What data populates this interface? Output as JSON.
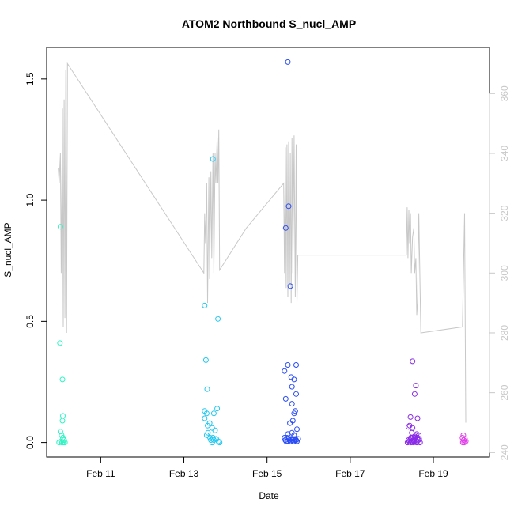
{
  "chart_data": {
    "type": "scatter",
    "title": "ATOM2 Northbound S_nucl_AMP",
    "xlabel": "Date",
    "ylabel": "S_nucl_AMP",
    "x_unit": "days (0 = Feb 10 00:00)",
    "xlim": [
      -0.3,
      10.35
    ],
    "ylim": [
      -0.06,
      1.63
    ],
    "y2lim": [
      238.5,
      375.4
    ],
    "x_ticks": [
      {
        "x": 1,
        "label": "Feb 11"
      },
      {
        "x": 3,
        "label": "Feb 13"
      },
      {
        "x": 5,
        "label": "Feb 15"
      },
      {
        "x": 7,
        "label": "Feb 17"
      },
      {
        "x": 9,
        "label": "Feb 19"
      }
    ],
    "y_ticks": [
      {
        "y": 0.0,
        "label": "0.0"
      },
      {
        "y": 0.5,
        "label": "0.5"
      },
      {
        "y": 1.0,
        "label": "1.0"
      },
      {
        "y": 1.5,
        "label": "1.5"
      }
    ],
    "y2_ticks": [
      {
        "y": 240,
        "label": "240"
      },
      {
        "y": 260,
        "label": "260"
      },
      {
        "y": 280,
        "label": "280"
      },
      {
        "y": 300,
        "label": "300"
      },
      {
        "y": 320,
        "label": "320"
      },
      {
        "y": 340,
        "label": "340"
      },
      {
        "y": 360,
        "label": "360"
      }
    ],
    "grid": false,
    "series": [
      {
        "color": "#2ff5c4",
        "points": [
          [
            0.03,
            0.89
          ],
          [
            0.02,
            0.41
          ],
          [
            0.08,
            0.26
          ],
          [
            0.09,
            0.11
          ],
          [
            0.08,
            0.09
          ],
          [
            0.03,
            0.045
          ],
          [
            0.06,
            0.03
          ],
          [
            0.09,
            0.02
          ],
          [
            0.12,
            0.01
          ],
          [
            0.05,
            0.005
          ],
          [
            0.07,
            0.0
          ],
          [
            0.1,
            0.0
          ],
          [
            0.14,
            0.0
          ],
          [
            0.0,
            0.0
          ]
        ]
      },
      {
        "color": "#22c8f0",
        "points": [
          [
            3.7,
            1.17
          ],
          [
            3.5,
            0.565
          ],
          [
            3.82,
            0.51
          ],
          [
            3.53,
            0.34
          ],
          [
            3.56,
            0.22
          ],
          [
            3.8,
            0.14
          ],
          [
            3.5,
            0.13
          ],
          [
            3.55,
            0.12
          ],
          [
            3.72,
            0.12
          ],
          [
            3.5,
            0.1
          ],
          [
            3.62,
            0.08
          ],
          [
            3.57,
            0.07
          ],
          [
            3.68,
            0.06
          ],
          [
            3.75,
            0.05
          ],
          [
            3.58,
            0.04
          ],
          [
            3.55,
            0.03
          ],
          [
            3.63,
            0.02
          ],
          [
            3.7,
            0.02
          ],
          [
            3.78,
            0.015
          ],
          [
            3.65,
            0.01
          ],
          [
            3.72,
            0.01
          ],
          [
            3.83,
            0.005
          ],
          [
            3.86,
            0.0
          ],
          [
            3.68,
            0.0
          ]
        ]
      },
      {
        "color": "#2a4cf5",
        "points": [
          [
            5.5,
            1.57
          ],
          [
            5.52,
            0.975
          ],
          [
            5.45,
            0.885
          ],
          [
            5.56,
            0.645
          ],
          [
            5.5,
            0.32
          ],
          [
            5.7,
            0.32
          ],
          [
            5.42,
            0.295
          ],
          [
            5.58,
            0.27
          ],
          [
            5.65,
            0.26
          ],
          [
            5.6,
            0.23
          ],
          [
            5.7,
            0.2
          ],
          [
            5.45,
            0.18
          ],
          [
            5.6,
            0.16
          ],
          [
            5.68,
            0.13
          ],
          [
            5.65,
            0.12
          ],
          [
            5.62,
            0.09
          ],
          [
            5.55,
            0.08
          ],
          [
            5.72,
            0.055
          ],
          [
            5.6,
            0.04
          ],
          [
            5.5,
            0.035
          ],
          [
            5.65,
            0.03
          ],
          [
            5.42,
            0.02
          ],
          [
            5.48,
            0.02
          ],
          [
            5.52,
            0.015
          ],
          [
            5.58,
            0.015
          ],
          [
            5.62,
            0.015
          ],
          [
            5.68,
            0.015
          ],
          [
            5.75,
            0.015
          ],
          [
            5.44,
            0.01
          ],
          [
            5.54,
            0.01
          ],
          [
            5.6,
            0.01
          ],
          [
            5.66,
            0.01
          ],
          [
            5.7,
            0.01
          ],
          [
            5.46,
            0.005
          ],
          [
            5.5,
            0.005
          ],
          [
            5.56,
            0.005
          ],
          [
            5.64,
            0.005
          ],
          [
            5.72,
            0.005
          ]
        ]
      },
      {
        "color": "#8a2be8",
        "points": [
          [
            8.5,
            0.335
          ],
          [
            8.58,
            0.235
          ],
          [
            8.55,
            0.2
          ],
          [
            8.45,
            0.105
          ],
          [
            8.62,
            0.1
          ],
          [
            8.43,
            0.07
          ],
          [
            8.4,
            0.065
          ],
          [
            8.5,
            0.06
          ],
          [
            8.48,
            0.04
          ],
          [
            8.6,
            0.035
          ],
          [
            8.65,
            0.03
          ],
          [
            8.55,
            0.025
          ],
          [
            8.46,
            0.02
          ],
          [
            8.5,
            0.02
          ],
          [
            8.56,
            0.02
          ],
          [
            8.62,
            0.02
          ],
          [
            8.66,
            0.015
          ],
          [
            8.4,
            0.01
          ],
          [
            8.44,
            0.01
          ],
          [
            8.52,
            0.01
          ],
          [
            8.58,
            0.01
          ],
          [
            8.64,
            0.01
          ],
          [
            8.42,
            0.005
          ],
          [
            8.48,
            0.005
          ],
          [
            8.54,
            0.005
          ],
          [
            8.6,
            0.005
          ],
          [
            8.38,
            0.0
          ],
          [
            8.46,
            0.0
          ],
          [
            8.52,
            0.0
          ],
          [
            8.6,
            0.0
          ],
          [
            8.68,
            0.0
          ]
        ]
      },
      {
        "color": "#e040e8",
        "points": [
          [
            9.72,
            0.03
          ],
          [
            9.7,
            0.02
          ],
          [
            9.76,
            0.015
          ],
          [
            9.73,
            0.01
          ],
          [
            9.78,
            0.005
          ],
          [
            9.74,
            0.0
          ],
          [
            9.71,
            0.0
          ]
        ]
      }
    ],
    "secondary_line": {
      "color": "#c8c8c8",
      "points": [
        [
          -0.02,
          335
        ],
        [
          0.0,
          330
        ],
        [
          0.03,
          340
        ],
        [
          0.05,
          300
        ],
        [
          0.08,
          355
        ],
        [
          0.1,
          282
        ],
        [
          0.12,
          358
        ],
        [
          0.14,
          285
        ],
        [
          0.16,
          368
        ],
        [
          0.18,
          280
        ],
        [
          0.2,
          370
        ],
        [
          3.48,
          300
        ],
        [
          3.5,
          320
        ],
        [
          3.52,
          310
        ],
        [
          3.55,
          330
        ],
        [
          3.57,
          290
        ],
        [
          3.6,
          332
        ],
        [
          3.62,
          298
        ],
        [
          3.65,
          334
        ],
        [
          3.67,
          305
        ],
        [
          3.7,
          340
        ],
        [
          3.72,
          300
        ],
        [
          3.75,
          340
        ],
        [
          3.77,
          330
        ],
        [
          3.8,
          345
        ],
        [
          3.82,
          330
        ],
        [
          3.84,
          348
        ],
        [
          3.86,
          301
        ],
        [
          4.5,
          315
        ],
        [
          5.4,
          330
        ],
        [
          5.42,
          300
        ],
        [
          5.44,
          342
        ],
        [
          5.46,
          295
        ],
        [
          5.48,
          343
        ],
        [
          5.5,
          292
        ],
        [
          5.52,
          344
        ],
        [
          5.54,
          296
        ],
        [
          5.56,
          340
        ],
        [
          5.58,
          290
        ],
        [
          5.6,
          345
        ],
        [
          5.62,
          300
        ],
        [
          5.65,
          346
        ],
        [
          5.68,
          292
        ],
        [
          5.7,
          343
        ],
        [
          5.72,
          290
        ],
        [
          5.74,
          306
        ],
        [
          8.35,
          306
        ],
        [
          8.37,
          322
        ],
        [
          8.39,
          305
        ],
        [
          8.41,
          321
        ],
        [
          8.43,
          310
        ],
        [
          8.45,
          320
        ],
        [
          8.47,
          300
        ],
        [
          8.5,
          312
        ],
        [
          8.53,
          315
        ],
        [
          8.55,
          300
        ],
        [
          8.58,
          305
        ],
        [
          8.6,
          286
        ],
        [
          8.62,
          290
        ],
        [
          8.65,
          320
        ],
        [
          8.7,
          280
        ],
        [
          9.7,
          282
        ],
        [
          9.75,
          320
        ],
        [
          9.78,
          250
        ]
      ]
    }
  }
}
